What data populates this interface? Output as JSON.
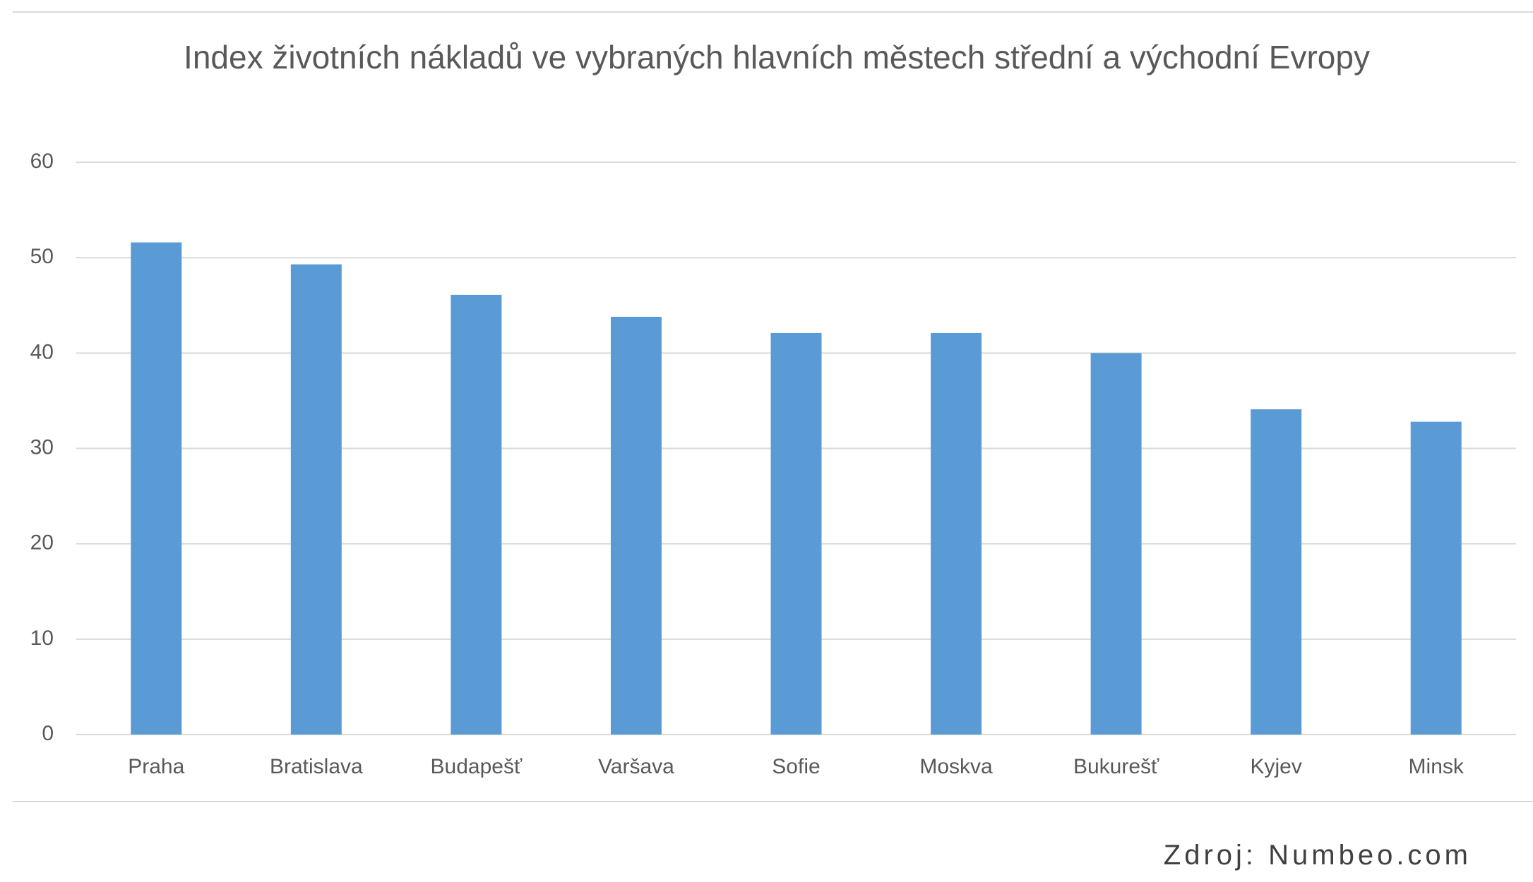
{
  "chart_data": {
    "type": "bar",
    "title": "Index životních nákladů ve vybraných hlavních městech střední a východní Evropy",
    "categories": [
      "Praha",
      "Bratislava",
      "Budapešť",
      "Varšava",
      "Sofie",
      "Moskva",
      "Bukurešť",
      "Kyjev",
      "Minsk"
    ],
    "values": [
      51.6,
      49.3,
      46.1,
      43.8,
      42.1,
      42.1,
      40.0,
      34.1,
      32.8
    ],
    "color": "#5b9bd5",
    "ylim": [
      0,
      60
    ],
    "yticks": [
      0,
      10,
      20,
      30,
      40,
      50,
      60
    ],
    "grid": true,
    "source": "Zdroj: Numbeo.com"
  }
}
